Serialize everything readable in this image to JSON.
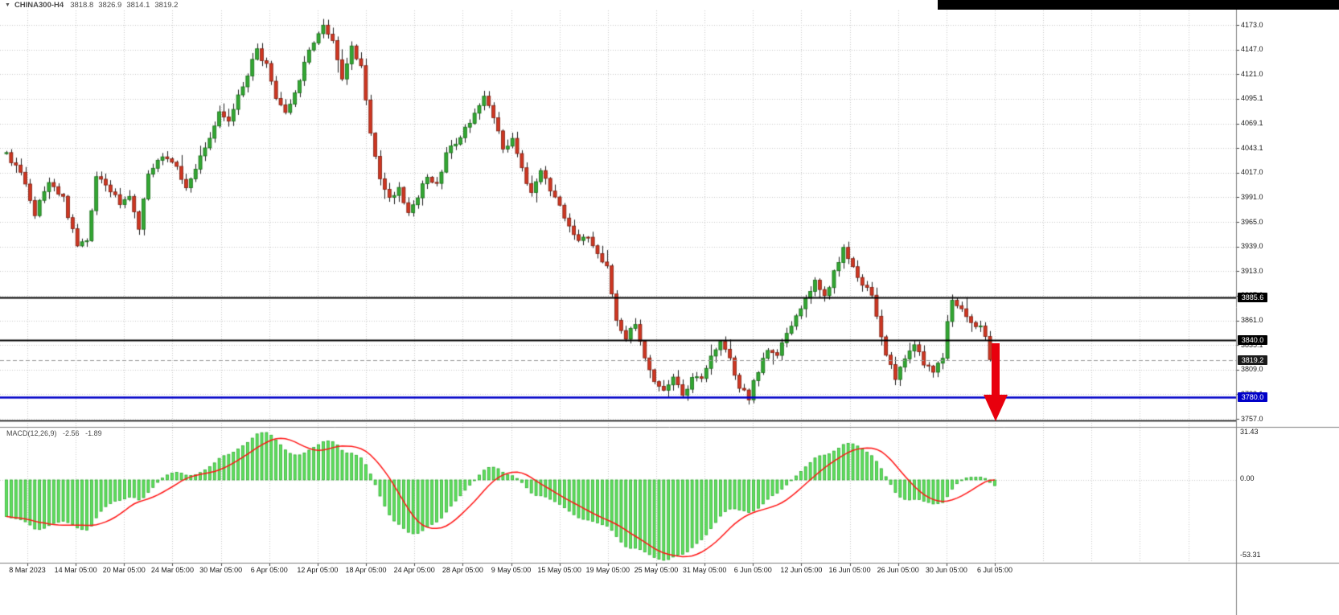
{
  "window": {
    "top_strip_color": "#000000"
  },
  "symbol_bar": {
    "dropdown_icon": "▼",
    "symbol": "CHINA300-H4",
    "open": "3818.8",
    "high": "3826.9",
    "low": "3814.1",
    "close": "3819.2"
  },
  "chart_data": {
    "type": "candlestick",
    "title": "CHINA300-H4",
    "timeframe": "H4",
    "bars_count": 210,
    "price_axis": {
      "top": 4173.0,
      "step": 26.0,
      "ticks": [
        "4173.0",
        "4147.0",
        "4121.0",
        "4095.1",
        "4069.1",
        "4043.1",
        "4017.0",
        "3991.0",
        "3965.0",
        "3939.0",
        "3913.0",
        "3887.0",
        "3861.0",
        "3835.1",
        "3809.0",
        "3783.1",
        "3757.0"
      ]
    },
    "time_axis": {
      "labels": [
        "8 Mar 2023",
        "14 Mar 05:00",
        "20 Mar 05:00",
        "24 Mar 05:00",
        "30 Mar 05:00",
        "6 Apr 05:00",
        "12 Apr 05:00",
        "18 Apr 05:00",
        "24 Apr 05:00",
        "28 Apr 05:00",
        "9 May 05:00",
        "15 May 05:00",
        "19 May 05:00",
        "25 May 05:00",
        "31 May 05:00",
        "6 Jun 05:00",
        "12 Jun 05:00",
        "16 Jun 05:00",
        "26 Jun 05:00",
        "30 Jun 05:00",
        "6 Jul 05:00"
      ]
    },
    "hlines": [
      {
        "price": 3885.6,
        "label": "3885.6",
        "color": "#000000",
        "tag_bg": "#000000",
        "width": 2,
        "dashed": false
      },
      {
        "price": 3840.0,
        "label": "3840.0",
        "color": "#000000",
        "tag_bg": "#000000",
        "width": 2,
        "dashed": false
      },
      {
        "price": 3819.2,
        "label": "3819.2",
        "color": "#9a9a9a",
        "tag_bg": "#1c1c1c",
        "width": 1,
        "dashed": true
      },
      {
        "price": 3780.0,
        "label": "3780.0",
        "color": "#0000c8",
        "tag_bg": "#0000c8",
        "width": 2.5,
        "dashed": false
      },
      {
        "price": 3755.0,
        "label": null,
        "color": "#000000",
        "tag_bg": null,
        "width": 1.5,
        "dashed": false
      }
    ],
    "price_path_anchors": [
      [
        0,
        4035
      ],
      [
        3,
        4015
      ],
      [
        6,
        3975
      ],
      [
        9,
        4005
      ],
      [
        12,
        3990
      ],
      [
        15,
        3938
      ],
      [
        17,
        3945
      ],
      [
        19,
        4010
      ],
      [
        22,
        4000
      ],
      [
        24,
        3985
      ],
      [
        26,
        3995
      ],
      [
        28,
        3958
      ],
      [
        30,
        4015
      ],
      [
        33,
        4035
      ],
      [
        36,
        4025
      ],
      [
        38,
        4000
      ],
      [
        40,
        4020
      ],
      [
        43,
        4055
      ],
      [
        45,
        4080
      ],
      [
        47,
        4068
      ],
      [
        50,
        4110
      ],
      [
        53,
        4145
      ],
      [
        55,
        4132
      ],
      [
        57,
        4095
      ],
      [
        59,
        4078
      ],
      [
        61,
        4100
      ],
      [
        63,
        4135
      ],
      [
        65,
        4155
      ],
      [
        67,
        4175
      ],
      [
        69,
        4158
      ],
      [
        71,
        4115
      ],
      [
        73,
        4150
      ],
      [
        75,
        4128
      ],
      [
        77,
        4060
      ],
      [
        79,
        4010
      ],
      [
        81,
        3988
      ],
      [
        83,
        3998
      ],
      [
        85,
        3978
      ],
      [
        87,
        3992
      ],
      [
        89,
        4015
      ],
      [
        91,
        4005
      ],
      [
        93,
        4035
      ],
      [
        95,
        4050
      ],
      [
        97,
        4062
      ],
      [
        99,
        4080
      ],
      [
        101,
        4098
      ],
      [
        103,
        4075
      ],
      [
        105,
        4045
      ],
      [
        107,
        4050
      ],
      [
        109,
        4020
      ],
      [
        111,
        3995
      ],
      [
        113,
        4018
      ],
      [
        115,
        3998
      ],
      [
        117,
        3985
      ],
      [
        119,
        3958
      ],
      [
        121,
        3942
      ],
      [
        123,
        3950
      ],
      [
        125,
        3932
      ],
      [
        127,
        3916
      ],
      [
        129,
        3862
      ],
      [
        131,
        3843
      ],
      [
        133,
        3856
      ],
      [
        135,
        3824
      ],
      [
        137,
        3798
      ],
      [
        139,
        3786
      ],
      [
        141,
        3799
      ],
      [
        143,
        3784
      ],
      [
        145,
        3798
      ],
      [
        147,
        3800
      ],
      [
        149,
        3820
      ],
      [
        151,
        3842
      ],
      [
        153,
        3822
      ],
      [
        155,
        3790
      ],
      [
        157,
        3780
      ],
      [
        159,
        3808
      ],
      [
        161,
        3832
      ],
      [
        163,
        3824
      ],
      [
        165,
        3850
      ],
      [
        167,
        3866
      ],
      [
        169,
        3886
      ],
      [
        171,
        3902
      ],
      [
        173,
        3886
      ],
      [
        175,
        3912
      ],
      [
        177,
        3936
      ],
      [
        179,
        3918
      ],
      [
        181,
        3896
      ],
      [
        183,
        3890
      ],
      [
        184,
        3862
      ],
      [
        186,
        3824
      ],
      [
        188,
        3802
      ],
      [
        190,
        3820
      ],
      [
        192,
        3838
      ],
      [
        194,
        3814
      ],
      [
        196,
        3806
      ],
      [
        198,
        3824
      ],
      [
        199,
        3858
      ],
      [
        200,
        3884
      ],
      [
        202,
        3874
      ],
      [
        204,
        3860
      ],
      [
        206,
        3852
      ],
      [
        207,
        3845
      ],
      [
        208,
        3822
      ],
      [
        209,
        3819.2
      ]
    ],
    "annotation_arrow": {
      "direction": "down",
      "color": "#e8000d"
    },
    "colors": {
      "up": "#33a833",
      "up_border": "#156b15",
      "down": "#cf3722",
      "down_border": "#7c1d10",
      "wick": "#1d1d1d",
      "grid": "#c9c9c9",
      "macd_bar": "#5fe25f",
      "macd_bar_border": "#2aa42a",
      "signal": "#ff1414",
      "separator": "#808080",
      "arrow": "#e8000d"
    }
  },
  "macd_panel": {
    "indicator_label": "MACD(12,26,9)",
    "macd_value": "-2.56",
    "signal_value": "-1.89",
    "params": {
      "fast": 12,
      "slow": 26,
      "signal": 9
    },
    "scale": {
      "top": "31.43",
      "zero": "0.00",
      "bottom": "-53.31"
    }
  }
}
